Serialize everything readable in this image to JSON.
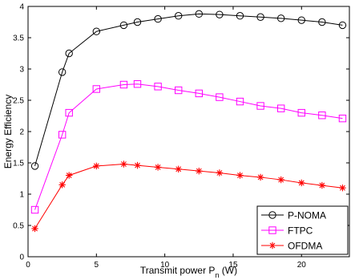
{
  "chart_data": {
    "type": "line",
    "xlabel": "Transmit power P",
    "xlabel_sub": "n",
    "xlabel_unit": " (W)",
    "ylabel": "Energy Efficiency",
    "xlim": [
      0,
      23.5
    ],
    "ylim": [
      0,
      4
    ],
    "xticks": [
      0,
      5,
      10,
      15,
      20
    ],
    "yticks": [
      0,
      0.5,
      1,
      1.5,
      2,
      2.5,
      3,
      3.5,
      4
    ],
    "ytick_labels": [
      "0",
      "0.5",
      "1",
      "1.5",
      "2",
      "2.5",
      "3",
      "3.5",
      "4"
    ],
    "grid": false,
    "legend_position": "bottom-right",
    "series": [
      {
        "name": "P-NOMA",
        "color": "#000000",
        "marker": "circle",
        "x": [
          0.5,
          2.5,
          3,
          5,
          7,
          8,
          9.5,
          11,
          12.5,
          14,
          15.5,
          17,
          18.5,
          20,
          21.5,
          23
        ],
        "y": [
          1.45,
          2.95,
          3.25,
          3.6,
          3.7,
          3.75,
          3.8,
          3.85,
          3.88,
          3.87,
          3.85,
          3.83,
          3.81,
          3.78,
          3.75,
          3.7
        ]
      },
      {
        "name": "FTPC",
        "color": "#ff00ff",
        "marker": "square",
        "x": [
          0.5,
          2.5,
          3,
          5,
          7,
          8,
          9.5,
          11,
          12.5,
          14,
          15.5,
          17,
          18.5,
          20,
          21.5,
          23
        ],
        "y": [
          0.75,
          1.95,
          2.3,
          2.68,
          2.75,
          2.76,
          2.72,
          2.66,
          2.61,
          2.55,
          2.48,
          2.41,
          2.37,
          2.3,
          2.26,
          2.21
        ]
      },
      {
        "name": "OFDMA",
        "color": "#ff0000",
        "marker": "asterisk",
        "x": [
          0.5,
          2.5,
          3,
          5,
          7,
          8,
          9.5,
          11,
          12.5,
          14,
          15.5,
          17,
          18.5,
          20,
          21.5,
          23
        ],
        "y": [
          0.45,
          1.15,
          1.3,
          1.45,
          1.48,
          1.46,
          1.43,
          1.4,
          1.37,
          1.34,
          1.3,
          1.27,
          1.23,
          1.18,
          1.14,
          1.1
        ]
      }
    ]
  }
}
